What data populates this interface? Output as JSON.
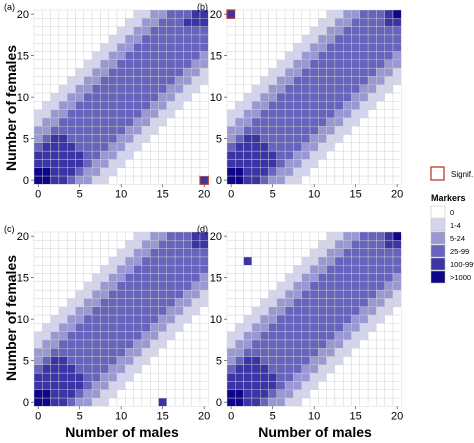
{
  "figure": {
    "y_axis_label": "Number of females",
    "x_axis_label": "Number of males",
    "signif_label": "Signif.",
    "legend_title": "Markers"
  },
  "legend": {
    "title": "Markers",
    "categories": [
      "0",
      "1-4",
      "5-24",
      "25-99",
      "100-999",
      ">1000"
    ],
    "colors": [
      "#ffffff",
      "#d4d4ec",
      "#9a98d2",
      "#6764bd",
      "#3a34a4",
      "#0e0688"
    ],
    "signif_color": "#c0392b"
  },
  "chart_data": [
    {
      "type": "heatmap",
      "panel": "(a)",
      "xlabel": "Number of males",
      "ylabel": "Number of females",
      "x_ticks": [
        0,
        5,
        10,
        15,
        20
      ],
      "y_ticks": [
        0,
        5,
        10,
        15,
        20
      ],
      "xlim": [
        0,
        20
      ],
      "ylim": [
        0,
        20
      ],
      "grid": true,
      "value_encoding": "marker-count category index 0-5 (0, 1-4, 5-24, 25-99, 100-999, >1000)",
      "special_cells": [
        {
          "x": 20,
          "y": 0,
          "level": 4,
          "signif": true
        },
        {
          "x": 0,
          "y": 1,
          "level": 5
        },
        {
          "x": 18,
          "y": 19,
          "level": 4
        },
        {
          "x": 19,
          "y": 19,
          "level": 4
        },
        {
          "x": 20,
          "y": 19,
          "level": 4
        }
      ]
    },
    {
      "type": "heatmap",
      "panel": "(b)",
      "xlabel": "Number of males",
      "ylabel": "Number of females",
      "x_ticks": [
        0,
        5,
        10,
        15,
        20
      ],
      "y_ticks": [
        0,
        5,
        10,
        15,
        20
      ],
      "xlim": [
        0,
        20
      ],
      "ylim": [
        0,
        20
      ],
      "grid": true,
      "value_encoding": "marker-count category index 0-5 (0, 1-4, 5-24, 25-99, 100-999, >1000)",
      "special_cells": [
        {
          "x": 0,
          "y": 20,
          "level": 4,
          "signif": true
        },
        {
          "x": 1,
          "y": 0,
          "level": 5
        },
        {
          "x": 19,
          "y": 20,
          "level": 4
        },
        {
          "x": 20,
          "y": 20,
          "level": 5
        }
      ]
    },
    {
      "type": "heatmap",
      "panel": "(c)",
      "xlabel": "Number of males",
      "ylabel": "Number of females",
      "x_ticks": [
        0,
        5,
        10,
        15,
        20
      ],
      "y_ticks": [
        0,
        5,
        10,
        15,
        20
      ],
      "xlim": [
        0,
        20
      ],
      "ylim": [
        0,
        20
      ],
      "grid": true,
      "value_encoding": "marker-count category index 0-5 (0, 1-4, 5-24, 25-99, 100-999, >1000)",
      "special_cells": [
        {
          "x": 15,
          "y": 0,
          "level": 4
        },
        {
          "x": 0,
          "y": 1,
          "level": 5
        },
        {
          "x": 19,
          "y": 20,
          "level": 4
        },
        {
          "x": 20,
          "y": 20,
          "level": 4
        }
      ]
    },
    {
      "type": "heatmap",
      "panel": "(d)",
      "xlabel": "Number of males",
      "ylabel": "Number of females",
      "x_ticks": [
        0,
        5,
        10,
        15,
        20
      ],
      "y_ticks": [
        0,
        5,
        10,
        15,
        20
      ],
      "xlim": [
        0,
        20
      ],
      "ylim": [
        0,
        20
      ],
      "grid": true,
      "value_encoding": "marker-count category index 0-5 (0, 1-4, 5-24, 25-99, 100-999, >1000)",
      "special_cells": [
        {
          "x": 2,
          "y": 17,
          "level": 4
        },
        {
          "x": 1,
          "y": 0,
          "level": 5
        },
        {
          "x": 19,
          "y": 20,
          "level": 4
        },
        {
          "x": 20,
          "y": 20,
          "level": 5
        }
      ]
    }
  ]
}
